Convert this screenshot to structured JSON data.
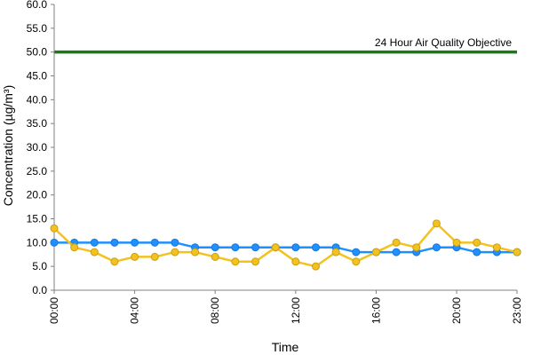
{
  "chart_data": {
    "type": "line",
    "title": "",
    "xlabel": "Time",
    "ylabel": "Concentration (µg/m³)",
    "ylim": [
      0,
      60
    ],
    "y_ticks": [
      "0.0",
      "5.0",
      "10.0",
      "15.0",
      "20.0",
      "25.0",
      "30.0",
      "35.0",
      "40.0",
      "45.0",
      "50.0",
      "55.0",
      "60.0"
    ],
    "x_ticks": [
      "00:00",
      "04:00",
      "08:00",
      "12:00",
      "16:00",
      "20:00",
      "23:00"
    ],
    "x_tick_hours": [
      0,
      4,
      8,
      12,
      16,
      20,
      23
    ],
    "hours": [
      0,
      1,
      2,
      3,
      4,
      5,
      6,
      7,
      8,
      9,
      10,
      11,
      12,
      13,
      14,
      15,
      16,
      17,
      18,
      19,
      20,
      21,
      22,
      23
    ],
    "grid": false,
    "legend": "none",
    "series": [
      {
        "color": "#1e90ff",
        "values": [
          10,
          10,
          10,
          10,
          10,
          10,
          10,
          9,
          9,
          9,
          9,
          9,
          9,
          9,
          9,
          8,
          8,
          8,
          8,
          9,
          9,
          8,
          8,
          8
        ]
      },
      {
        "color": "#f4c21e",
        "values": [
          13,
          9,
          8,
          6,
          7,
          7,
          8,
          8,
          7,
          6,
          6,
          9,
          6,
          5,
          8,
          6,
          8,
          10,
          9,
          14,
          10,
          10,
          9,
          8
        ]
      }
    ],
    "reference_line": {
      "label": "24 Hour Air Quality Objective",
      "value": 50,
      "color": "#1a7a1a"
    },
    "axis_color": "#808080"
  }
}
